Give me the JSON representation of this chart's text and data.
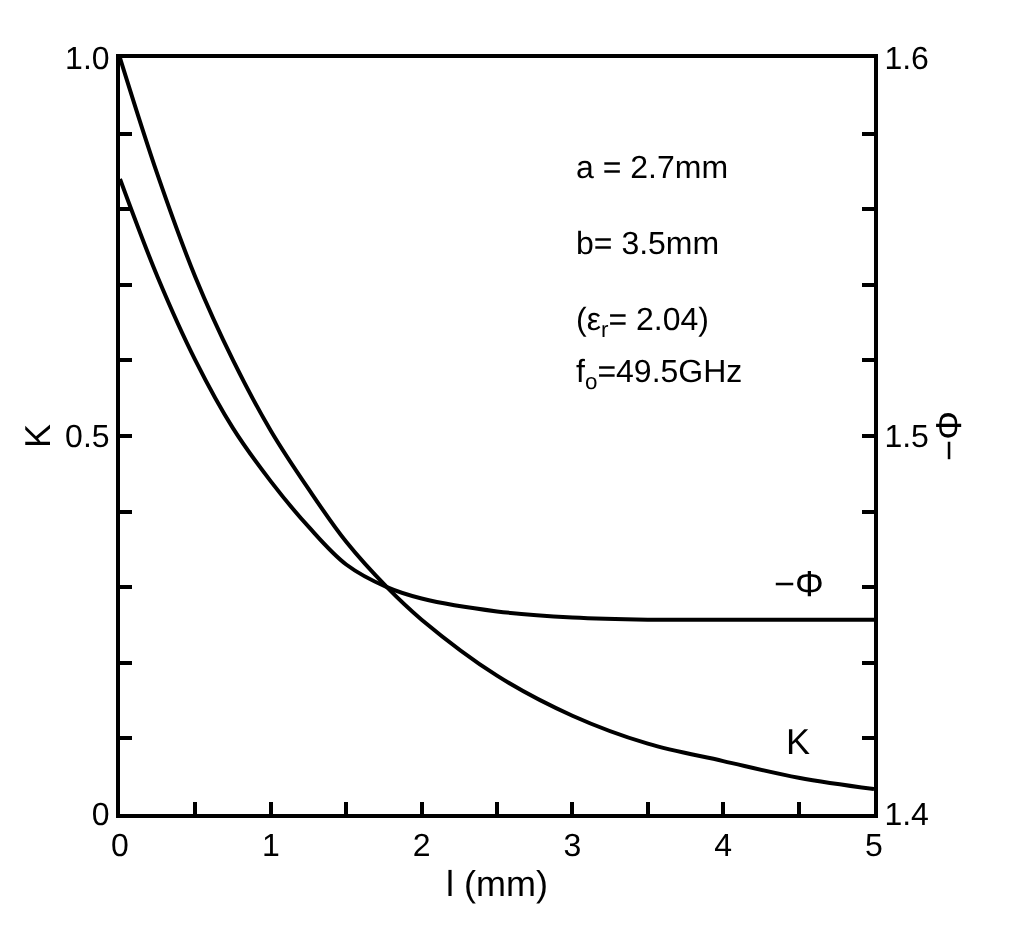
{
  "chart_data": {
    "type": "line",
    "xlabel": "l (mm)",
    "ylabel": "K",
    "y2label": "−Φ",
    "xlim": [
      0,
      5
    ],
    "xticks": [
      0,
      {
        "value": 0.5,
        "label": null
      },
      1,
      {
        "value": 1.5,
        "label": null
      },
      2,
      {
        "value": 2.5,
        "label": null
      },
      3,
      {
        "value": 3.5,
        "label": null
      },
      4,
      {
        "value": 4.5,
        "label": null
      },
      5
    ],
    "ylim": [
      0,
      1
    ],
    "yticks": [
      0,
      {
        "value": 0.1,
        "label": null
      },
      {
        "value": 0.2,
        "label": null
      },
      {
        "value": 0.3,
        "label": null
      },
      {
        "value": 0.4,
        "label": null
      },
      {
        "value": 0.5,
        "label": "0.5"
      },
      {
        "value": 0.6,
        "label": null
      },
      {
        "value": 0.7,
        "label": null
      },
      {
        "value": 0.8,
        "label": null
      },
      {
        "value": 0.9,
        "label": null
      },
      {
        "value": 1,
        "label": "1.0"
      }
    ],
    "y2lim": [
      1.4,
      1.6
    ],
    "y2ticks": [
      1.4,
      {
        "value": 1.42,
        "label": null
      },
      {
        "value": 1.44,
        "label": null
      },
      {
        "value": 1.46,
        "label": null
      },
      {
        "value": 1.48,
        "label": null
      },
      1.5,
      {
        "value": 1.52,
        "label": null
      },
      {
        "value": 1.54,
        "label": null
      },
      {
        "value": 1.56,
        "label": null
      },
      {
        "value": 1.58,
        "label": null
      },
      1.6
    ],
    "legend": false,
    "marker": "none",
    "line_style": "solid",
    "series": [
      {
        "name": "K",
        "color": "#000000",
        "x": [
          0,
          0.25,
          0.5,
          0.75,
          1,
          1.25,
          1.5,
          1.77,
          2,
          2.5,
          3,
          3.5,
          4,
          4.5,
          5
        ],
        "values": [
          1.0,
          0.845,
          0.71,
          0.6,
          0.507,
          0.43,
          0.36,
          0.3,
          0.257,
          0.183,
          0.13,
          0.093,
          0.07,
          0.048,
          0.033
        ]
      },
      {
        "name": "−Φ",
        "color": "#000000",
        "axis": "y2",
        "x": [
          0,
          0.25,
          0.5,
          0.75,
          1,
          1.25,
          1.5,
          1.77,
          2,
          2.5,
          3,
          3.5,
          4,
          5
        ],
        "values": [
          1.568,
          1.542,
          1.52,
          1.502,
          1.488,
          1.476,
          1.466,
          1.46,
          1.457,
          1.4536,
          1.452,
          1.4514,
          1.4514,
          1.4514
        ]
      }
    ],
    "annotations": [
      "a = 2.7mm",
      "b= 3.5mm",
      "(ε$_{r}$= 2.04)",
      "f$_{o}$=49.5GHz"
    ]
  }
}
